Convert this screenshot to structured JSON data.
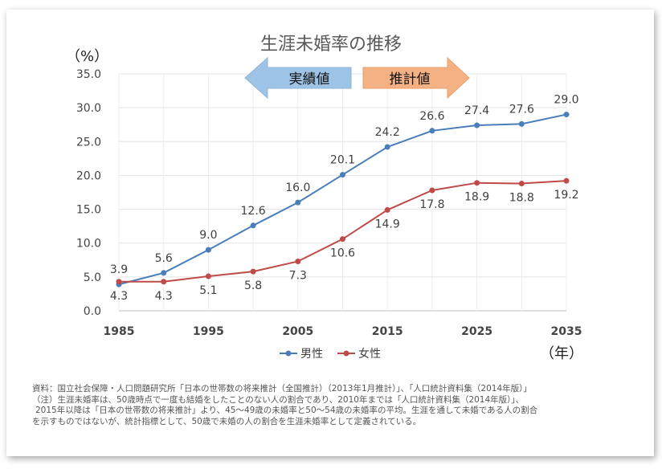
{
  "chart_data": {
    "type": "line",
    "title": "生涯未婚率の推移",
    "ylabel": "（%）",
    "xlabel": "（年）",
    "ylim": [
      0,
      35
    ],
    "yticks": [
      "0.0",
      "5.0",
      "10.0",
      "15.0",
      "20.0",
      "25.0",
      "30.0",
      "35.0"
    ],
    "xlim": [
      1985,
      2035
    ],
    "xticks": [
      "1985",
      "1995",
      "2005",
      "2015",
      "2025",
      "2035"
    ],
    "x": [
      1985,
      1990,
      1995,
      2000,
      2005,
      2010,
      2015,
      2020,
      2025,
      2030,
      2035
    ],
    "grid": true,
    "legend": "bottom",
    "series": [
      {
        "name": "男性",
        "color": "#4a7ebb",
        "values": [
          3.9,
          5.6,
          9.0,
          12.6,
          16.0,
          20.1,
          24.2,
          26.6,
          27.4,
          27.6,
          29.0
        ],
        "labels": [
          "3.9",
          "5.6",
          "9.0",
          "12.6",
          "16.0",
          "20.1",
          "24.2",
          "26.6",
          "27.4",
          "27.6",
          "29.0"
        ]
      },
      {
        "name": "女性",
        "color": "#be4b48",
        "values": [
          4.3,
          4.3,
          5.1,
          5.8,
          7.3,
          10.6,
          14.9,
          17.8,
          18.9,
          18.8,
          19.2
        ],
        "labels": [
          "4.3",
          "4.3",
          "5.1",
          "5.8",
          "7.3",
          "10.6",
          "14.9",
          "17.8",
          "18.9",
          "18.8",
          "19.2"
        ]
      }
    ],
    "annotations": {
      "actual": "実績値",
      "projected": "推計値",
      "actual_color": "#9dc3e6",
      "projected_color": "#f4b183"
    }
  },
  "notes": [
    "資料：国立社会保障・人口問題研究所「日本の世帯数の将来推計（全国推計）（2013年1月推計）」、「人口統計資料集（2014年版）」",
    "（注）生涯未婚率は、50歳時点で一度も結婚をしたことのない人の割合であり、2010年までは「人口統計資料集（2014年版）」、",
    "2015年以降は「日本の世帯数の将来推計」より、45～49歳の未婚率と50～54歳の未婚率の平均。生涯を通して未婚である人の割合",
    "を示すものではないが、統計指標として、50歳で未婚の人の割合を生涯未婚率として定義されている。"
  ]
}
